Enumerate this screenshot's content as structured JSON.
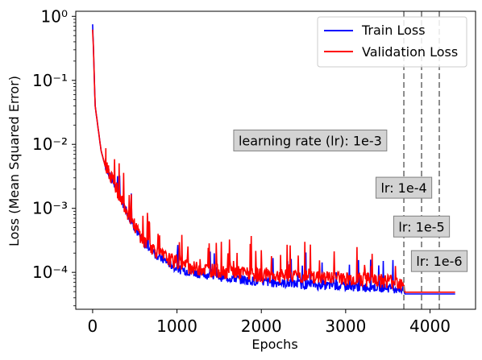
{
  "chart_data": {
    "type": "line",
    "xlabel": "Epochs",
    "ylabel": "Loss (Mean Squared Error)",
    "xlim": [
      -200,
      4540
    ],
    "ylim": [
      2.65e-05,
      1.2
    ],
    "yscale": "log",
    "xticks": [
      0,
      1000,
      2000,
      3000,
      4000
    ],
    "xtick_labels": [
      "0",
      "1000",
      "2000",
      "3000",
      "4000"
    ],
    "yticks": [
      0.0001,
      0.001,
      0.01,
      0.1,
      1
    ],
    "ytick_labels": [
      "10⁻⁴",
      "10⁻³",
      "10⁻²",
      "10⁻¹",
      "10⁰"
    ],
    "grid": false,
    "legend_position": "top-right",
    "series": [
      {
        "name": "Train Loss",
        "color": "#0000ff",
        "x": [
          0,
          10,
          30,
          60,
          100,
          150,
          200,
          300,
          400,
          500,
          600,
          800,
          1000,
          1200,
          1500,
          2000,
          2500,
          3000,
          3500,
          3690,
          3700,
          4000,
          4300
        ],
        "y": [
          0.75,
          0.3,
          0.04,
          0.02,
          0.008,
          0.0045,
          0.0032,
          0.0017,
          0.0009,
          0.00048,
          0.00028,
          0.00016,
          0.00011,
          9.5e-05,
          8.2e-05,
          6.8e-05,
          6.2e-05,
          5.8e-05,
          5.5e-05,
          5.2e-05,
          4.6e-05,
          4.6e-05,
          4.6e-05
        ]
      },
      {
        "name": "Validation Loss",
        "color": "#ff0000",
        "x": [
          0,
          10,
          30,
          60,
          100,
          150,
          200,
          300,
          400,
          500,
          600,
          800,
          1000,
          1200,
          1500,
          2000,
          2500,
          3000,
          3500,
          3690,
          3700,
          4000,
          4300
        ],
        "y": [
          0.62,
          0.3,
          0.04,
          0.02,
          0.008,
          0.0045,
          0.0032,
          0.0017,
          0.0009,
          0.0005,
          0.0003,
          0.00018,
          0.00013,
          0.00011,
          0.0001,
          8.5e-05,
          8e-05,
          7.5e-05,
          7e-05,
          6.5e-05,
          4.9e-05,
          4.9e-05,
          4.9e-05
        ]
      }
    ],
    "vlines": [
      {
        "x": 3690,
        "style": "dashed",
        "color": "#808080"
      },
      {
        "x": 3900,
        "style": "dashed",
        "color": "#808080"
      },
      {
        "x": 4110,
        "style": "dashed",
        "color": "#808080"
      }
    ],
    "annotations": [
      {
        "text": "learning rate (lr): 1e-3",
        "x": 2580,
        "y": 0.0115
      },
      {
        "text": "lr: 1e-4",
        "x": 3690,
        "y": 0.0021
      },
      {
        "text": "lr: 1e-5",
        "x": 3900,
        "y": 0.00052
      },
      {
        "text": "lr: 1e-6",
        "x": 4110,
        "y": 0.00015
      }
    ]
  }
}
